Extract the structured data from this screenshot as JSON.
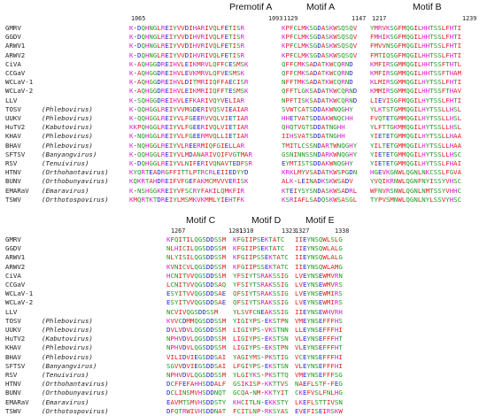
{
  "names": [
    "GMRV",
    "GGDV",
    "ARWV1",
    "ARWV2",
    "CiVA",
    "CCGaV",
    "WCLaV-1",
    "WCLaV-2",
    "LLV",
    "TOSV",
    "UUKV",
    "HuTV2",
    "KHAV",
    "BHAV",
    "SFTSV",
    "RSV",
    "HTNV",
    "BUNV",
    "EMARaV",
    "TSWV"
  ],
  "genera": [
    "",
    "",
    "",
    "",
    "",
    "",
    "",
    "",
    "",
    "(Phlebovirus)",
    "(Phlebovirus)",
    "(Kabutovirus)",
    "(Phlebovirus)",
    "(Phlebovirus)",
    "(Banyangvirus)",
    "(Tenuivirus)",
    "(Orthohantavirus)",
    "(Orthobunyavirus)",
    "(Emaravirus)",
    "(Orthotospovirus)"
  ],
  "colors": {
    "magenta": "#d81ad8",
    "red": "#e31c1c",
    "blue": "#2323d9",
    "green": "#1e9a1e",
    "default": "#222222"
  },
  "top": {
    "headers": {
      "premotifA": "Premotif A",
      "motifA": "Motif A",
      "motifB": "Motif B"
    },
    "nums": {
      "preA_start": "1065",
      "preA_end": "1093",
      "A_start": "1129",
      "A_end": "1147",
      "B_start": "1217",
      "B_end": "1239"
    },
    "preA": [
      "K-DQHNGLREIYVVDIHARIVQLFETISR",
      "K-DQHNGLREIYVVDIHVRIVQLFETISR",
      "K-DQHNGLREIYVVDIHVRIVQLFETISR",
      "K-DQHNGLREIYVVDIHVRIVQLFETISR",
      "K-AQHGGDREIHVLEIKMRVLQFFCESMSK",
      "K-AQHGGDREIHVLEVKMRVLQFVESMSK",
      "K-AQHGGDREIHVLDITMRIIQFFAECISR",
      "K-AQHGGDREIHVLEIKMRIIQFFTESMSK",
      "K-SQHGGDREIHVLEFKARIVQYVELIAR",
      "K-QQHGGLREIYVVMGDERIVQSVIEAIAR",
      "K-QQHGGLREIYVLFGEERVVQLVIETIAR",
      "KKPQHGGLREIYVLFGEERIVQLVIETIAR",
      "K-NQHGGLREIYVLFGEERMVQLLIETIAR",
      "K-NQHGGLREIYVLREERMIQFGIELLAR",
      "K-QQHGGLREIYVLMDANARIVQIFVGTMAR",
      "K-DQHGGLREIYVLNIFERIVQNAVTEDFSR",
      "KYQRTEADRGFFITTLPTRCRLEIIEDYYD",
      "KQKRTAHDREIFVFGEFAKMCMVVVERISK",
      "K-NSHGGKREIYVFSCRYFAKILQMKFIR",
      "KMQRTKTDREIYLMSMKVKMMLYIEHTFK"
    ],
    "A": [
      "KPFCLMKSGDASKWSQSQV",
      "KPFCLMKSGDASKWSQSQV",
      "KPFCLMKSGDASKWSQSQV",
      "KPFCLMKSGDASKWSQSQV",
      "QFFCMKSADATKWCQRND",
      "QFFCMKSADATKWCQRND",
      "NFFTMKSADATKWCQRND",
      "QFFTLGKSADATKWCQRND",
      "NPFTISKSADATKWCQRND",
      "SVWTCATSDDAKWNQGHY",
      "HHETVATSDDAKWNQCHH",
      "QHQTVGTSDDATNGHH",
      "IIHSVATSDDATNGHH",
      "TMITLCSSNDARTWNQGHY",
      "GSNINNSSNDARKWNQGHY",
      "EYMTISTSDDAKWNQGHY",
      "KRKLMYVSADATKWSPGDN",
      "ALK-LEINADKSKWSADV",
      "KTEIYSYSNDASKWSADRL",
      "KSRIAFLSADQSKWSASGL"
    ],
    "B": [
      "YMRVKSGFMQGILHHTSSLFHTI",
      "FMHIKSGFMQGILHHTSSLFHTI",
      "FMVVNSGFMQGILHHTSSLFHTI",
      "FMTIQSGFMQGILHHTSSLFHTI",
      "KMFIRSGMMQGILHHTSSFTHTL",
      "KMFIRSGMMQGILHHTSSFTHAM",
      "KLMIRSGMMQGILHYTSSLFHTI",
      "KMMIRSGMMQGILHHTSSFTHAV",
      "LIEVISGFMQGILHYTSSLFHTI",
      "YLKTSTGMMQGILHYTSSLLHSL",
      "FVQTETGMMQGILHYTSSLLHSL",
      "YLFTTGKMMQGILHYTSSLLHSL",
      "YIETETGMMQGILHYTSSLLHAA",
      "YILTETGMMQGILHYTSSLLHAA",
      "YIETETGMMQGILHYTSSLLHSC",
      "YIETETGMMQGILHYTSSLFHAI",
      "HGEVKGNWLQGNLNKCSSLFGVA",
      "YVQIKRNWLQGNFNYISSYVHSC",
      "WFNVRSNWLQGNLNMTSSYVHHC",
      "TYPVSMNWLQGNLNYLSSVYHSC"
    ]
  },
  "bottom": {
    "headers": {
      "motifC": "Motif C",
      "motifD": "Motif D",
      "motifE": "Motif E"
    },
    "nums": {
      "C_start": "1267",
      "C_end": "1281",
      "D_start": "1310",
      "D_end": "1323",
      "E_start": "1327",
      "E_end": "1338"
    },
    "C": [
      "KFQITILQGSDDSSM",
      "NLHICILQGSDDSSM",
      "NLYISILQGSDDSSM",
      "KVNICVLQGSDDSSM",
      "HCNITVVQGSDDSSM",
      "LCNITVVQGSDDSAQ",
      "ESYITVVQGSDDSAE",
      "ESYITVVQGSDDSAE",
      "NCVIVQGSDDSSM",
      "KVVCDMMQGSDDSSM",
      "DVLVDVLQGSDDSSM",
      "NPHVDVLQGSDDSSM",
      "NPHVDVLQGSDDSSM",
      "VILIDVIEGSDDSAI",
      "SGVVDVIEGSDDSAI",
      "NPHVDVLQGSDDSSM",
      "DCFFEFAHHSDDALF",
      "DCLINSMVHSDDNQT",
      "EAVMTSMVHSDDSTY",
      "DFQTRWIVHSDDNAT"
    ],
    "D": [
      "KFGIIPSEKTATC",
      "KFGIIPSEKTATC",
      "KFGIIPSSEKTATC",
      "KFGIIPSSEKTATC",
      "YFSIYTSRAKSSIG",
      "YFSIYTSRAKSSIG",
      "QFSIYTSRAKSSIG",
      "QFSIYTSRAKSSIG",
      "YLSVFCNEAKSSIG",
      "YIGIYPS-EKSTPN",
      "LIGIYPS-VKSTNN",
      "LIGIYPS-EKSTSN",
      "LIGIYPS-EKSTPN",
      "YAGIYMS-PKSTIG",
      "LFGIYPS-EKSTSN",
      "YLGIYKS-PKSTTQ",
      "GSIKISP-KKTTVS",
      "GCQA-NM-KKTYIT",
      "KHCITLN-EKKSTY",
      "FCITLNP-RKSYAS"
    ],
    "E": [
      "IIEYNSQWLSLG",
      "IIEYNSQWLALG",
      "IIEYNSQWLALG",
      "IIEYNSQWLAMG",
      "LVEYNSEWMVRN",
      "LVEYNSEWMVRS",
      "LVEYNSEWMIRS",
      "LVEYNSEWMIRS",
      "IIEYNSEWHVRH",
      "VMEYNSEFFFHS",
      "LLEYNSEFFFHI",
      "VLEYNSEFFFHT",
      "VLEYNSEFFFHT",
      "VCEYNSEFFFHI",
      "VLEYNSEFFFHI",
      "VMEYNSEFFFSG",
      "NAEFLSTF-FEG",
      "CKEFVSLFNLHG",
      "LKEFLSTTIVSN",
      "EVEFISEIRSKW"
    ]
  }
}
